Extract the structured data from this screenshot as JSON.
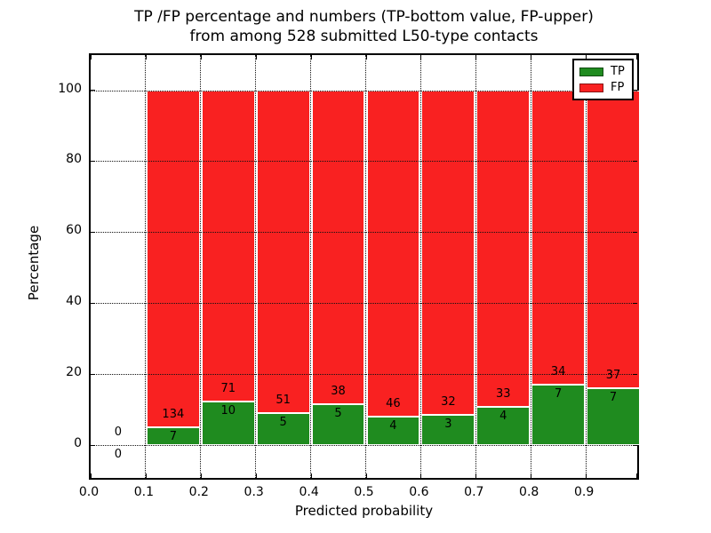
{
  "chart_data": {
    "type": "bar",
    "stacked": true,
    "normalized_to_percent": true,
    "title_line1": "TP /FP percentage and numbers (TP-bottom value, FP-upper)",
    "title_line2": "from among 528 submitted L50-type contacts",
    "xlabel": "Predicted probability",
    "ylabel": "Percentage",
    "total_contacts": 528,
    "grid": "dotted",
    "xlim": [
      0.0,
      1.0
    ],
    "ylim": [
      -10,
      110
    ],
    "y_ticks": [
      0,
      20,
      40,
      60,
      80,
      100
    ],
    "x_tick_labels": [
      "0.0",
      "0.1",
      "0.2",
      "0.3",
      "0.4",
      "0.5",
      "0.6",
      "0.7",
      "0.8",
      "0.9"
    ],
    "series_note": "TP-bottom value, FP-upper",
    "bins": [
      {
        "range": "0.0-0.1",
        "tp": 0,
        "fp": 0,
        "tp_percent": 0.0
      },
      {
        "range": "0.1-0.2",
        "tp": 7,
        "fp": 134,
        "tp_percent": 4.96
      },
      {
        "range": "0.2-0.3",
        "tp": 10,
        "fp": 71,
        "tp_percent": 12.35
      },
      {
        "range": "0.3-0.4",
        "tp": 5,
        "fp": 51,
        "tp_percent": 8.93
      },
      {
        "range": "0.4-0.5",
        "tp": 5,
        "fp": 38,
        "tp_percent": 11.63
      },
      {
        "range": "0.5-0.6",
        "tp": 4,
        "fp": 46,
        "tp_percent": 8.0
      },
      {
        "range": "0.6-0.7",
        "tp": 3,
        "fp": 32,
        "tp_percent": 8.57
      },
      {
        "range": "0.7-0.8",
        "tp": 4,
        "fp": 33,
        "tp_percent": 10.81
      },
      {
        "range": "0.8-0.9",
        "tp": 7,
        "fp": 34,
        "tp_percent": 17.07
      },
      {
        "range": "0.9-1.0",
        "tp": 7,
        "fp": 37,
        "tp_percent": 15.91
      }
    ],
    "legend": {
      "position": "upper-right",
      "entries": [
        {
          "label": "TP",
          "color": "#1f8b1f"
        },
        {
          "label": "FP",
          "color": "#f92121"
        }
      ]
    }
  }
}
